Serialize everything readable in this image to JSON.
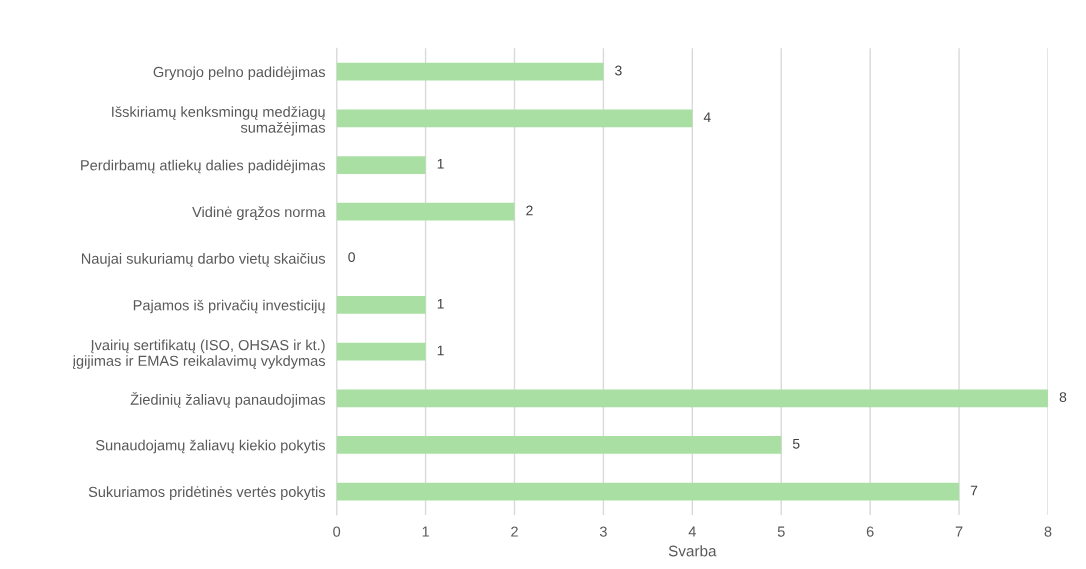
{
  "chart_data": {
    "type": "bar",
    "orientation": "horizontal",
    "xlabel": "Svarba",
    "categories": [
      "Grynojo pelno padidėjimas",
      "Išskiriamų kenksmingų medžiagų\nsumažėjimas",
      "Perdirbamų atliekų dalies padidėjimas",
      "Vidinė grąžos norma",
      "Naujai sukuriamų darbo vietų skaičius",
      "Pajamos iš privačių investicijų",
      "Įvairių sertifikatų (ISO, OHSAS ir kt.)\nįgijimas ir EMAS reikalavimų vykdymas",
      "Žiedinių žaliavų panaudojimas",
      "Sunaudojamų žaliavų kiekio pokytis",
      "Sukuriamos pridėtinės vertės pokytis"
    ],
    "values": [
      3,
      4,
      1,
      2,
      0,
      1,
      1,
      8,
      5,
      7
    ],
    "color": "#a9dfa3",
    "xlim": [
      0,
      8
    ],
    "xticks": [
      0,
      1,
      2,
      3,
      4,
      5,
      6,
      7,
      8
    ],
    "grid": "x",
    "legend": false,
    "data_labels": true
  }
}
